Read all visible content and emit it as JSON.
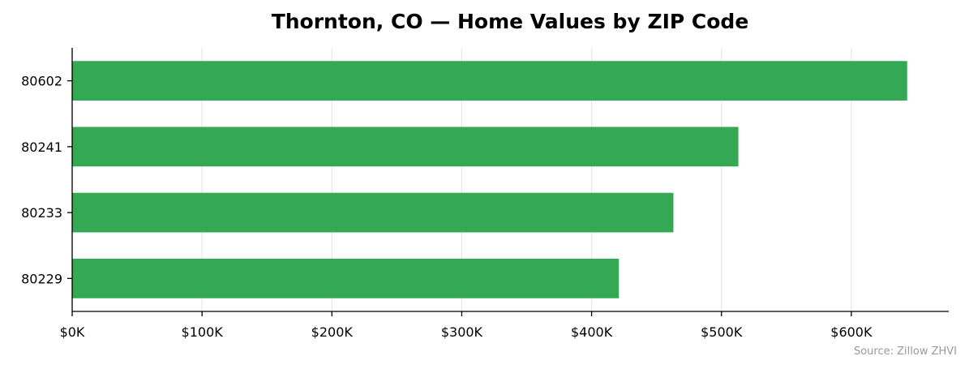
{
  "chart_data": {
    "type": "bar",
    "orientation": "horizontal",
    "title": "Thornton, CO — Home Values by ZIP Code",
    "xlabel": "",
    "ylabel": "",
    "categories": [
      "80602",
      "80241",
      "80233",
      "80229"
    ],
    "values": [
      643000,
      513000,
      463000,
      421000
    ],
    "xlim": [
      0,
      675000
    ],
    "x_ticks": [
      0,
      100000,
      200000,
      300000,
      400000,
      500000,
      600000
    ],
    "x_tick_labels": [
      "$0K",
      "$100K",
      "$200K",
      "$300K",
      "$400K",
      "$500K",
      "$600K"
    ],
    "grid": "x",
    "bar_color": "#34a853",
    "source_note": "Source: Zillow ZHVI"
  }
}
